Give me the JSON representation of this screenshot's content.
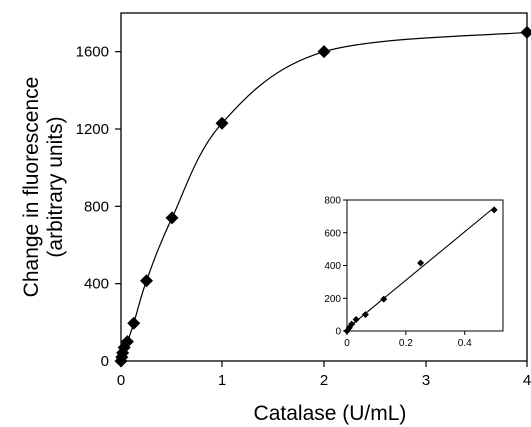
{
  "chart_data": [
    {
      "type": "scatter",
      "xlabel": "Catalase (U/mL)",
      "ylabel": "Change in fluorescence",
      "ylabel_line2": "(arbitrary units)",
      "x_axis": "piecewise",
      "x_ticks": [
        0,
        1,
        2,
        3,
        4
      ],
      "x_tick_labels": [
        "0",
        "1",
        "2",
        "3",
        "4"
      ],
      "y_ticks": [
        0,
        400,
        800,
        1200,
        1600
      ],
      "y_tick_labels": [
        "0",
        "400",
        "800",
        "1200",
        "1600"
      ],
      "ylim": [
        0,
        1800
      ],
      "grid": false,
      "legend": "none",
      "marker": "diamond",
      "fit_line": "smooth saturating curve",
      "series": [
        {
          "x": [
            0,
            0.008,
            0.016,
            0.031,
            0.0625,
            0.125,
            0.25,
            0.5,
            1,
            2,
            4
          ],
          "y": [
            0,
            20,
            42,
            70,
            100,
            195,
            415,
            740,
            1230,
            1600,
            1700
          ]
        }
      ]
    },
    {
      "type": "scatter",
      "position": "inset",
      "xlim": [
        0,
        0.53
      ],
      "ylim": [
        0,
        800
      ],
      "x_ticks": [
        0,
        0.2,
        0.4
      ],
      "x_tick_labels": [
        "0",
        "0.2",
        "0.4"
      ],
      "y_ticks": [
        0,
        200,
        400,
        600,
        800
      ],
      "y_tick_labels": [
        "0",
        "200",
        "400",
        "600",
        "800"
      ],
      "grid": false,
      "marker": "diamond",
      "fit_line": "linear",
      "series": [
        {
          "x": [
            0,
            0.008,
            0.016,
            0.031,
            0.0625,
            0.125,
            0.25,
            0.5
          ],
          "y": [
            0,
            20,
            42,
            70,
            100,
            195,
            415,
            740
          ]
        }
      ]
    }
  ]
}
